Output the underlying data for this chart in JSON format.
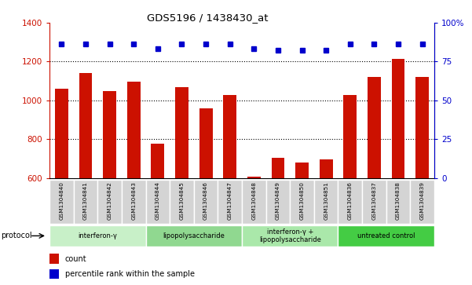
{
  "title": "GDS5196 / 1438430_at",
  "samples": [
    "GSM1304840",
    "GSM1304841",
    "GSM1304842",
    "GSM1304843",
    "GSM1304844",
    "GSM1304845",
    "GSM1304846",
    "GSM1304847",
    "GSM1304848",
    "GSM1304849",
    "GSM1304850",
    "GSM1304851",
    "GSM1304836",
    "GSM1304837",
    "GSM1304838",
    "GSM1304839"
  ],
  "counts": [
    1060,
    1140,
    1048,
    1098,
    778,
    1068,
    960,
    1030,
    608,
    706,
    680,
    698,
    1030,
    1120,
    1215,
    1120
  ],
  "percentile_y": [
    1290,
    1290,
    1290,
    1290,
    1268,
    1290,
    1290,
    1290,
    1268,
    1260,
    1260,
    1260,
    1290,
    1290,
    1290,
    1290
  ],
  "groups": [
    {
      "label": "interferon-γ",
      "start": 0,
      "end": 4,
      "color": "#c8f0c8"
    },
    {
      "label": "lipopolysaccharide",
      "start": 4,
      "end": 8,
      "color": "#90d890"
    },
    {
      "label": "interferon-γ +\nlipopolysaccharide",
      "start": 8,
      "end": 12,
      "color": "#aae8aa"
    },
    {
      "label": "untreated control",
      "start": 12,
      "end": 16,
      "color": "#44cc44"
    }
  ],
  "ylim_left": [
    600,
    1400
  ],
  "ylim_right": [
    0,
    100
  ],
  "bar_color": "#cc1100",
  "dot_color": "#0000cc",
  "bg_color": "#ffffff",
  "yticks_left": [
    600,
    800,
    1000,
    1200,
    1400
  ],
  "yticks_right": [
    0,
    25,
    50,
    75,
    100
  ],
  "grid_vals": [
    800,
    1000,
    1200
  ],
  "protocol_label": "protocol",
  "legend_count": "count",
  "legend_percentile": "percentile rank within the sample",
  "sample_box_color": "#d4d4d4",
  "bar_width": 0.55
}
